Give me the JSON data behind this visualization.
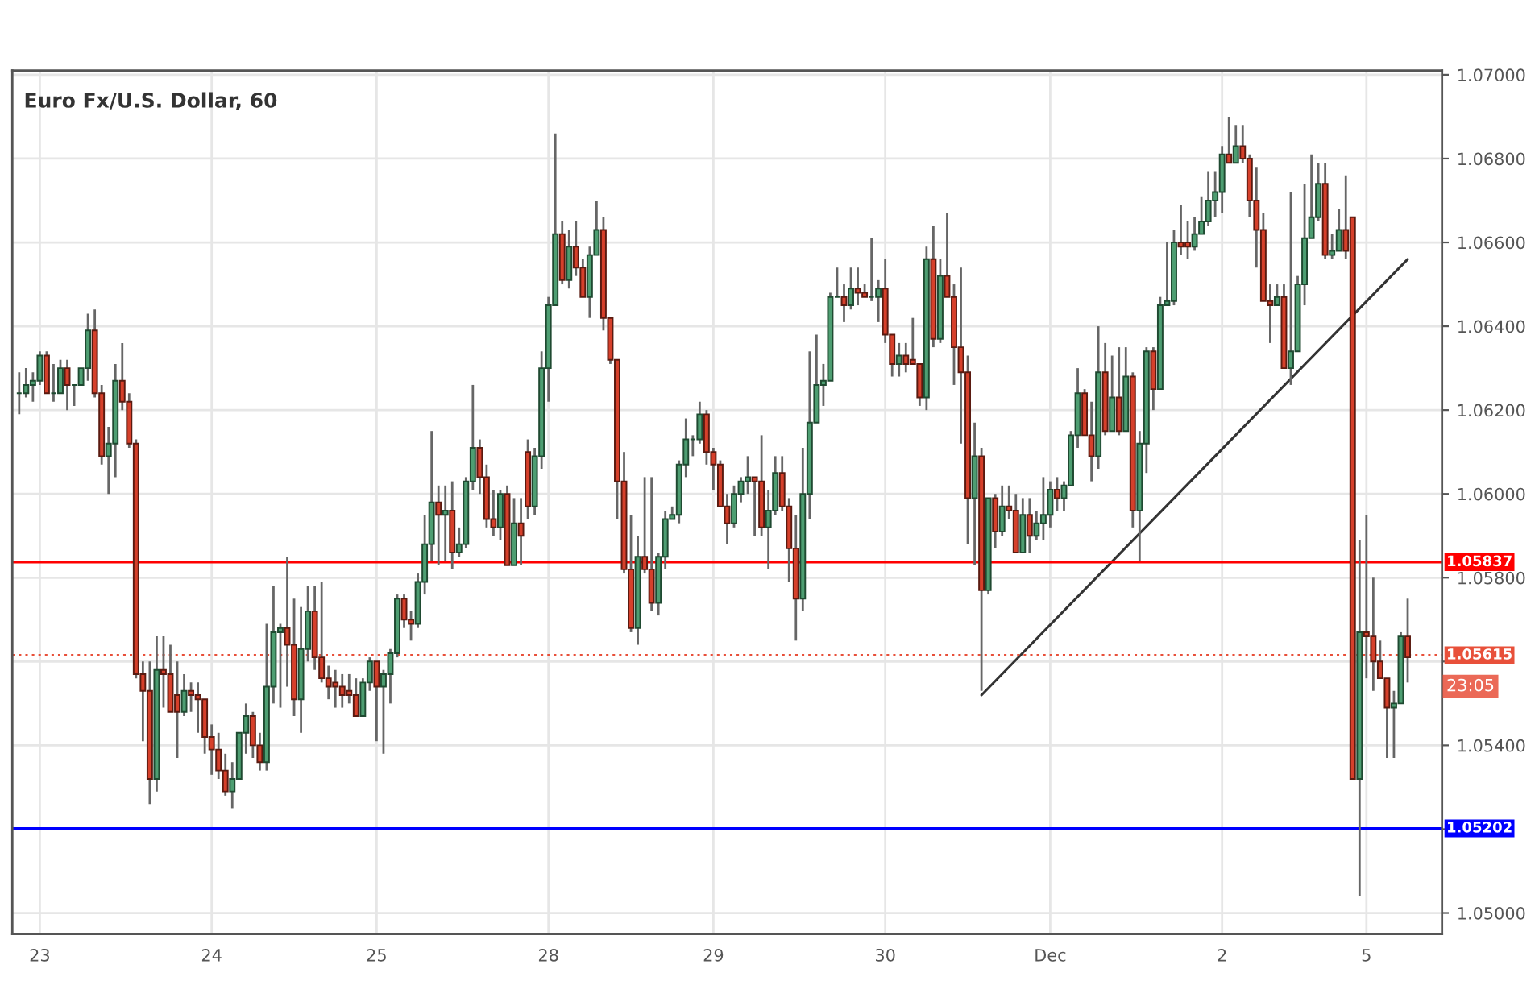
{
  "chart_data": {
    "type": "candlestick",
    "title": "Euro Fx/U.S. Dollar, 60",
    "categories": [
      null,
      null,
      null,
      "23",
      null,
      null,
      null,
      null,
      null,
      null,
      null,
      null,
      null,
      null,
      null,
      null,
      null,
      null,
      null,
      null,
      null,
      null,
      null,
      null,
      null,
      null,
      null,
      null,
      "24",
      null,
      null,
      null,
      null,
      null,
      null,
      null,
      null,
      null,
      null,
      null,
      null,
      null,
      null,
      null,
      null,
      null,
      null,
      null,
      null,
      null,
      null,
      null,
      "25",
      null,
      null,
      null,
      null,
      null,
      null,
      null,
      null,
      null,
      null,
      null,
      null,
      null,
      null,
      null,
      null,
      null,
      null,
      null,
      null,
      null,
      null,
      null,
      null,
      "28",
      null,
      null,
      null,
      null,
      null,
      null,
      null,
      null,
      null,
      null,
      null,
      null,
      null,
      null,
      null,
      null,
      null,
      null,
      null,
      null,
      null,
      null,
      null,
      "29",
      null,
      null,
      null,
      null,
      null,
      null,
      null,
      null,
      null,
      null,
      null,
      null,
      null,
      null,
      null,
      null,
      null,
      null,
      null,
      null,
      null,
      null,
      null,
      null,
      "30",
      null,
      null,
      null,
      null,
      null,
      null,
      null,
      null,
      null,
      null,
      null,
      null,
      null,
      null,
      null,
      null,
      null,
      null,
      null,
      null,
      null,
      null,
      null,
      "Dec",
      null,
      null,
      null,
      null,
      null,
      null,
      null,
      null,
      null,
      null,
      null,
      null,
      null,
      null,
      null,
      null,
      null,
      null,
      null,
      null,
      null,
      null,
      null,
      null,
      "2",
      null,
      null,
      null,
      null,
      null,
      null,
      null,
      null,
      null,
      null,
      null,
      null,
      null,
      null,
      null,
      null,
      null,
      null,
      null,
      null,
      "5",
      null,
      null,
      null,
      null,
      null,
      null
    ],
    "ohlc": [
      [
        1.0624,
        1.0629,
        1.0619,
        1.0624
      ],
      [
        1.0624,
        1.063,
        1.0623,
        1.0626
      ],
      [
        1.0626,
        1.0629,
        1.0622,
        1.0627
      ],
      [
        1.0627,
        1.0634,
        1.0626,
        1.0633
      ],
      [
        1.0633,
        1.0634,
        1.0624,
        1.0624
      ],
      [
        1.0624,
        1.0631,
        1.0622,
        1.0624
      ],
      [
        1.0624,
        1.0632,
        1.0624,
        1.063
      ],
      [
        1.063,
        1.0632,
        1.062,
        1.0626
      ],
      [
        1.0626,
        1.0626,
        1.0621,
        1.0626
      ],
      [
        1.0626,
        1.063,
        1.0626,
        1.063
      ],
      [
        1.063,
        1.0643,
        1.0627,
        1.0639
      ],
      [
        1.0639,
        1.0644,
        1.0623,
        1.0624
      ],
      [
        1.0624,
        1.0626,
        1.0607,
        1.0609
      ],
      [
        1.0609,
        1.0616,
        1.06,
        1.0612
      ],
      [
        1.0612,
        1.0631,
        1.0604,
        1.0627
      ],
      [
        1.0627,
        1.0636,
        1.062,
        1.0622
      ],
      [
        1.0622,
        1.0624,
        1.0611,
        1.0612
      ],
      [
        1.0612,
        1.0613,
        1.0556,
        1.0557
      ],
      [
        1.0557,
        1.056,
        1.0541,
        1.0553
      ],
      [
        1.0553,
        1.056,
        1.0526,
        1.0532
      ],
      [
        1.0532,
        1.0566,
        1.0529,
        1.0558
      ],
      [
        1.0558,
        1.0566,
        1.0549,
        1.0557
      ],
      [
        1.0557,
        1.0564,
        1.0548,
        1.0548
      ],
      [
        1.0552,
        1.056,
        1.0537,
        1.0548
      ],
      [
        1.0548,
        1.0557,
        1.0547,
        1.0553
      ],
      [
        1.0553,
        1.0555,
        1.0548,
        1.0552
      ],
      [
        1.0552,
        1.0555,
        1.0543,
        1.0551
      ],
      [
        1.0551,
        1.0551,
        1.0538,
        1.0542
      ],
      [
        1.0542,
        1.0545,
        1.0533,
        1.0539
      ],
      [
        1.0539,
        1.0543,
        1.0532,
        1.0534
      ],
      [
        1.0534,
        1.0538,
        1.0528,
        1.0529
      ],
      [
        1.0529,
        1.0536,
        1.0525,
        1.0532
      ],
      [
        1.0532,
        1.0543,
        1.0532,
        1.0543
      ],
      [
        1.0543,
        1.055,
        1.0538,
        1.0547
      ],
      [
        1.0547,
        1.0548,
        1.0537,
        1.054
      ],
      [
        1.054,
        1.0543,
        1.0534,
        1.0536
      ],
      [
        1.0536,
        1.0569,
        1.0534,
        1.0554
      ],
      [
        1.0554,
        1.0578,
        1.055,
        1.0567
      ],
      [
        1.0567,
        1.0569,
        1.0549,
        1.0568
      ],
      [
        1.0568,
        1.0585,
        1.0554,
        1.0564
      ],
      [
        1.0564,
        1.0575,
        1.0547,
        1.0551
      ],
      [
        1.0551,
        1.0573,
        1.0543,
        1.0563
      ],
      [
        1.0563,
        1.0578,
        1.056,
        1.0572
      ],
      [
        1.0572,
        1.0578,
        1.0558,
        1.0561
      ],
      [
        1.0561,
        1.0579,
        1.0555,
        1.0556
      ],
      [
        1.0556,
        1.0559,
        1.0551,
        1.0554
      ],
      [
        1.0555,
        1.0558,
        1.0549,
        1.0554
      ],
      [
        1.0554,
        1.0557,
        1.0549,
        1.0552
      ],
      [
        1.0553,
        1.0557,
        1.055,
        1.0552
      ],
      [
        1.0552,
        1.0556,
        1.0547,
        1.0547
      ],
      [
        1.0547,
        1.0556,
        1.0547,
        1.0555
      ],
      [
        1.0555,
        1.0561,
        1.0553,
        1.056
      ],
      [
        1.056,
        1.056,
        1.0541,
        1.0554
      ],
      [
        1.0554,
        1.0558,
        1.0538,
        1.0557
      ],
      [
        1.0557,
        1.0563,
        1.055,
        1.0562
      ],
      [
        1.0562,
        1.0576,
        1.0561,
        1.0575
      ],
      [
        1.0575,
        1.0576,
        1.0568,
        1.057
      ],
      [
        1.057,
        1.0572,
        1.0565,
        1.0569
      ],
      [
        1.0569,
        1.0581,
        1.0568,
        1.0579
      ],
      [
        1.0579,
        1.0595,
        1.0576,
        1.0588
      ],
      [
        1.0588,
        1.0615,
        1.0584,
        1.0598
      ],
      [
        1.0598,
        1.0602,
        1.0583,
        1.0595
      ],
      [
        1.0595,
        1.0602,
        1.0584,
        1.0596
      ],
      [
        1.0596,
        1.0603,
        1.0582,
        1.0586
      ],
      [
        1.0586,
        1.0592,
        1.0585,
        1.0588
      ],
      [
        1.0588,
        1.0604,
        1.0587,
        1.0603
      ],
      [
        1.0603,
        1.0626,
        1.0601,
        1.0611
      ],
      [
        1.0611,
        1.0613,
        1.06,
        1.0604
      ],
      [
        1.0604,
        1.0607,
        1.0592,
        1.0594
      ],
      [
        1.0594,
        1.0601,
        1.059,
        1.0592
      ],
      [
        1.0592,
        1.0601,
        1.0589,
        1.06
      ],
      [
        1.06,
        1.0602,
        1.0583,
        1.0583
      ],
      [
        1.0583,
        1.0599,
        1.0583,
        1.0593
      ],
      [
        1.0593,
        1.0599,
        1.0583,
        1.059
      ],
      [
        1.061,
        1.0613,
        1.0594,
        1.0597
      ],
      [
        1.0597,
        1.0611,
        1.0595,
        1.0609
      ],
      [
        1.0609,
        1.0634,
        1.0606,
        1.063
      ],
      [
        1.063,
        1.0647,
        1.0622,
        1.0645
      ],
      [
        1.0645,
        1.0686,
        1.0645,
        1.0662
      ],
      [
        1.0662,
        1.0665,
        1.065,
        1.0651
      ],
      [
        1.0651,
        1.0663,
        1.0649,
        1.0659
      ],
      [
        1.0659,
        1.0665,
        1.0652,
        1.0654
      ],
      [
        1.0654,
        1.0656,
        1.0647,
        1.0647
      ],
      [
        1.0647,
        1.0659,
        1.0642,
        1.0657
      ],
      [
        1.0657,
        1.067,
        1.0657,
        1.0663
      ],
      [
        1.0663,
        1.0666,
        1.0639,
        1.0642
      ],
      [
        1.0642,
        1.0642,
        1.0631,
        1.0632
      ],
      [
        1.0632,
        1.0632,
        1.0594,
        1.0603
      ],
      [
        1.0603,
        1.061,
        1.0581,
        1.0582
      ],
      [
        1.0582,
        1.0595,
        1.0567,
        1.0568
      ],
      [
        1.0568,
        1.059,
        1.0564,
        1.0585
      ],
      [
        1.0585,
        1.0604,
        1.0581,
        1.0582
      ],
      [
        1.0582,
        1.0604,
        1.0572,
        1.0574
      ],
      [
        1.0574,
        1.0586,
        1.0571,
        1.0585
      ],
      [
        1.0585,
        1.0596,
        1.0582,
        1.0594
      ],
      [
        1.0594,
        1.0597,
        1.0594,
        1.0595
      ],
      [
        1.0595,
        1.0608,
        1.0593,
        1.0607
      ],
      [
        1.0607,
        1.0618,
        1.0604,
        1.0613
      ],
      [
        1.0613,
        1.0614,
        1.0609,
        1.0613
      ],
      [
        1.0613,
        1.0622,
        1.0612,
        1.0619
      ],
      [
        1.0619,
        1.062,
        1.0607,
        1.061
      ],
      [
        1.061,
        1.0611,
        1.0601,
        1.0607
      ],
      [
        1.0607,
        1.0608,
        1.0597,
        1.0597
      ],
      [
        1.0597,
        1.06,
        1.0588,
        1.0593
      ],
      [
        1.0593,
        1.0602,
        1.0592,
        1.06
      ],
      [
        1.06,
        1.0604,
        1.0598,
        1.0603
      ],
      [
        1.0603,
        1.0609,
        1.06,
        1.0604
      ],
      [
        1.0604,
        1.0604,
        1.059,
        1.0603
      ],
      [
        1.0603,
        1.0614,
        1.059,
        1.0592
      ],
      [
        1.0592,
        1.0601,
        1.0582,
        1.0596
      ],
      [
        1.0596,
        1.0609,
        1.0595,
        1.0605
      ],
      [
        1.0605,
        1.0609,
        1.0596,
        1.0597
      ],
      [
        1.0597,
        1.0599,
        1.0579,
        1.0587
      ],
      [
        1.0587,
        1.0595,
        1.0565,
        1.0575
      ],
      [
        1.0575,
        1.0611,
        1.0572,
        1.06
      ],
      [
        1.06,
        1.0634,
        1.0594,
        1.0617
      ],
      [
        1.0617,
        1.0638,
        1.0617,
        1.0626
      ],
      [
        1.0626,
        1.0631,
        1.0621,
        1.0627
      ],
      [
        1.0627,
        1.0648,
        1.0627,
        1.0647
      ],
      [
        1.0647,
        1.0654,
        1.0647,
        1.0647
      ],
      [
        1.0647,
        1.065,
        1.0641,
        1.0645
      ],
      [
        1.0645,
        1.0654,
        1.0644,
        1.0649
      ],
      [
        1.0649,
        1.0654,
        1.0645,
        1.0648
      ],
      [
        1.0648,
        1.065,
        1.0647,
        1.0647
      ],
      [
        1.0647,
        1.0661,
        1.0646,
        1.0647
      ],
      [
        1.0647,
        1.0651,
        1.0641,
        1.0649
      ],
      [
        1.0649,
        1.0656,
        1.0636,
        1.0638
      ],
      [
        1.0638,
        1.0638,
        1.0628,
        1.0631
      ],
      [
        1.0631,
        1.0636,
        1.0628,
        1.0633
      ],
      [
        1.0633,
        1.0636,
        1.0629,
        1.0631
      ],
      [
        1.0632,
        1.0642,
        1.0631,
        1.0631
      ],
      [
        1.0631,
        1.0631,
        1.0621,
        1.0623
      ],
      [
        1.0623,
        1.0659,
        1.062,
        1.0656
      ],
      [
        1.0656,
        1.0664,
        1.0635,
        1.0637
      ],
      [
        1.0637,
        1.0656,
        1.0636,
        1.0652
      ],
      [
        1.0652,
        1.0667,
        1.0647,
        1.0647
      ],
      [
        1.0647,
        1.065,
        1.0626,
        1.0635
      ],
      [
        1.0635,
        1.0654,
        1.0612,
        1.0629
      ],
      [
        1.0629,
        1.0633,
        1.0588,
        1.0599
      ],
      [
        1.0599,
        1.0617,
        1.0583,
        1.0609
      ],
      [
        1.0609,
        1.0611,
        1.0553,
        1.0577
      ],
      [
        1.0577,
        1.0599,
        1.0576,
        1.0599
      ],
      [
        1.0599,
        1.06,
        1.0587,
        1.0591
      ],
      [
        1.0591,
        1.0602,
        1.059,
        1.0597
      ],
      [
        1.0597,
        1.0602,
        1.0594,
        1.0596
      ],
      [
        1.0596,
        1.06,
        1.0586,
        1.0586
      ],
      [
        1.0586,
        1.0599,
        1.0586,
        1.0595
      ],
      [
        1.0595,
        1.0599,
        1.0586,
        1.059
      ],
      [
        1.059,
        1.0596,
        1.0589,
        1.0593
      ],
      [
        1.0593,
        1.0604,
        1.0589,
        1.0595
      ],
      [
        1.0595,
        1.0603,
        1.0592,
        1.0601
      ],
      [
        1.0601,
        1.0604,
        1.0596,
        1.0599
      ],
      [
        1.0599,
        1.0603,
        1.0596,
        1.0602
      ],
      [
        1.0602,
        1.0615,
        1.0602,
        1.0614
      ],
      [
        1.0614,
        1.063,
        1.0611,
        1.0624
      ],
      [
        1.0624,
        1.0625,
        1.0614,
        1.0614
      ],
      [
        1.0614,
        1.0622,
        1.0603,
        1.0609
      ],
      [
        1.0609,
        1.064,
        1.0606,
        1.0629
      ],
      [
        1.0629,
        1.0636,
        1.0614,
        1.0615
      ],
      [
        1.0615,
        1.0633,
        1.0615,
        1.0623
      ],
      [
        1.0623,
        1.0635,
        1.0614,
        1.0615
      ],
      [
        1.0615,
        1.0635,
        1.0615,
        1.0628
      ],
      [
        1.0628,
        1.0629,
        1.0592,
        1.0596
      ],
      [
        1.0596,
        1.0615,
        1.0584,
        1.0612
      ],
      [
        1.0612,
        1.0635,
        1.0605,
        1.0634
      ],
      [
        1.0634,
        1.0635,
        1.062,
        1.0625
      ],
      [
        1.0625,
        1.0647,
        1.0625,
        1.0645
      ],
      [
        1.0645,
        1.066,
        1.0645,
        1.0646
      ],
      [
        1.0646,
        1.0663,
        1.0645,
        1.066
      ],
      [
        1.066,
        1.0669,
        1.0657,
        1.0659
      ],
      [
        1.066,
        1.0665,
        1.0656,
        1.0659
      ],
      [
        1.0659,
        1.0666,
        1.0658,
        1.0662
      ],
      [
        1.0662,
        1.0671,
        1.0662,
        1.0665
      ],
      [
        1.0665,
        1.0677,
        1.0664,
        1.067
      ],
      [
        1.067,
        1.0677,
        1.0666,
        1.0672
      ],
      [
        1.0672,
        1.0683,
        1.0667,
        1.0681
      ],
      [
        1.0681,
        1.069,
        1.0679,
        1.0679
      ],
      [
        1.0679,
        1.0688,
        1.0679,
        1.0683
      ],
      [
        1.0683,
        1.0688,
        1.0679,
        1.068
      ],
      [
        1.068,
        1.0681,
        1.0666,
        1.067
      ],
      [
        1.067,
        1.0678,
        1.0654,
        1.0663
      ],
      [
        1.0663,
        1.0667,
        1.0646,
        1.0646
      ],
      [
        1.0646,
        1.065,
        1.0636,
        1.0645
      ],
      [
        1.0645,
        1.065,
        1.0645,
        1.0647
      ],
      [
        1.0647,
        1.065,
        1.063,
        1.063
      ],
      [
        1.063,
        1.0672,
        1.0626,
        1.0634
      ],
      [
        1.0634,
        1.0652,
        1.0634,
        1.065
      ],
      [
        1.065,
        1.0674,
        1.0645,
        1.0661
      ],
      [
        1.0661,
        1.0681,
        1.0661,
        1.0666
      ],
      [
        1.0666,
        1.0679,
        1.0665,
        1.0674
      ],
      [
        1.0674,
        1.0679,
        1.0656,
        1.0657
      ],
      [
        1.0657,
        1.0662,
        1.0656,
        1.0658
      ],
      [
        1.0658,
        1.0668,
        1.0658,
        1.0663
      ],
      [
        1.0663,
        1.0676,
        1.0656,
        1.0658
      ],
      [
        1.0666,
        1.0666,
        1.0532,
        1.0532
      ],
      [
        1.0532,
        1.0589,
        1.0504,
        1.0567
      ],
      [
        1.0567,
        1.0595,
        1.0556,
        1.0566
      ],
      [
        1.0566,
        1.058,
        1.0553,
        1.056
      ],
      [
        1.056,
        1.0565,
        1.0556,
        1.0556
      ],
      [
        1.0556,
        1.0556,
        1.0537,
        1.0549
      ],
      [
        1.0549,
        1.0553,
        1.0537,
        1.055
      ],
      [
        1.055,
        1.0567,
        1.055,
        1.0566
      ],
      [
        1.0566,
        1.0575,
        1.0555,
        1.0561
      ]
    ],
    "series": [
      {
        "type": "line",
        "color": "#333333",
        "values": [
          null,
          null,
          null,
          null,
          null,
          null,
          null,
          null,
          null,
          null,
          null,
          null,
          null,
          null,
          null,
          null,
          null,
          null,
          null,
          null,
          null,
          null,
          null,
          null,
          null,
          null,
          null,
          null,
          null,
          null,
          null,
          null,
          null,
          null,
          null,
          null,
          null,
          null,
          null,
          null,
          null,
          null,
          null,
          null,
          null,
          null,
          null,
          null,
          null,
          null,
          null,
          null,
          null,
          null,
          null,
          null,
          null,
          null,
          null,
          null,
          null,
          null,
          null,
          null,
          null,
          null,
          null,
          null,
          null,
          null,
          null,
          null,
          null,
          null,
          null,
          null,
          null,
          null,
          null,
          null,
          null,
          null,
          null,
          null,
          null,
          null,
          null,
          null,
          null,
          null,
          null,
          null,
          null,
          null,
          null,
          null,
          null,
          null,
          null,
          null,
          null,
          null,
          null,
          null,
          null,
          null,
          null,
          null,
          null,
          null,
          null,
          null,
          null,
          null,
          null,
          null,
          null,
          null,
          null,
          null,
          null,
          null,
          null,
          null,
          null,
          null,
          null,
          null,
          null,
          null,
          null,
          null,
          null,
          null,
          null,
          null,
          null,
          null,
          null,
          null,
          1.0552,
          null,
          null,
          null,
          null,
          null,
          null,
          null,
          null,
          null,
          null,
          null,
          null,
          null,
          null,
          null,
          null,
          null,
          null,
          null,
          null,
          null,
          null,
          null,
          null,
          null,
          null,
          null,
          null,
          null,
          null,
          null,
          null,
          null,
          null,
          null,
          null,
          null,
          null,
          null,
          null,
          null,
          null,
          null,
          null,
          null,
          null,
          null,
          null,
          null,
          null,
          null,
          null,
          null,
          null,
          null,
          null,
          null,
          null,
          null,
          null,
          null,
          1.0656
        ]
      }
    ],
    "ylim": [
      1.0495,
      1.0701
    ],
    "yticks": [
      {
        "value": 1.05,
        "label": "1.05000"
      },
      {
        "value": 1.052,
        "label": null
      },
      {
        "value": 1.054,
        "label": "1.05400"
      },
      {
        "value": 1.056,
        "label": null
      },
      {
        "value": 1.058,
        "label": "1.05800"
      },
      {
        "value": 1.06,
        "label": "1.06000"
      },
      {
        "value": 1.062,
        "label": "1.06200"
      },
      {
        "value": 1.064,
        "label": "1.06400"
      },
      {
        "value": 1.066,
        "label": "1.06600"
      },
      {
        "value": 1.068,
        "label": "1.06800"
      },
      {
        "value": 1.07,
        "label": "1.07000"
      }
    ],
    "ref_lines": [
      {
        "axis": "y",
        "value": 1.05837,
        "label": "1.05837",
        "color": "#ff0000",
        "line_style": "solid"
      },
      {
        "axis": "y",
        "value": 1.05615,
        "label": "1.05615",
        "color": "#e8503a",
        "line_style": "dotted"
      },
      {
        "axis": "y",
        "value": 1.05202,
        "label": "1.05202",
        "color": "#0000ff",
        "line_style": "solid"
      }
    ],
    "annotations": [
      "23:05"
    ],
    "grid": true
  }
}
